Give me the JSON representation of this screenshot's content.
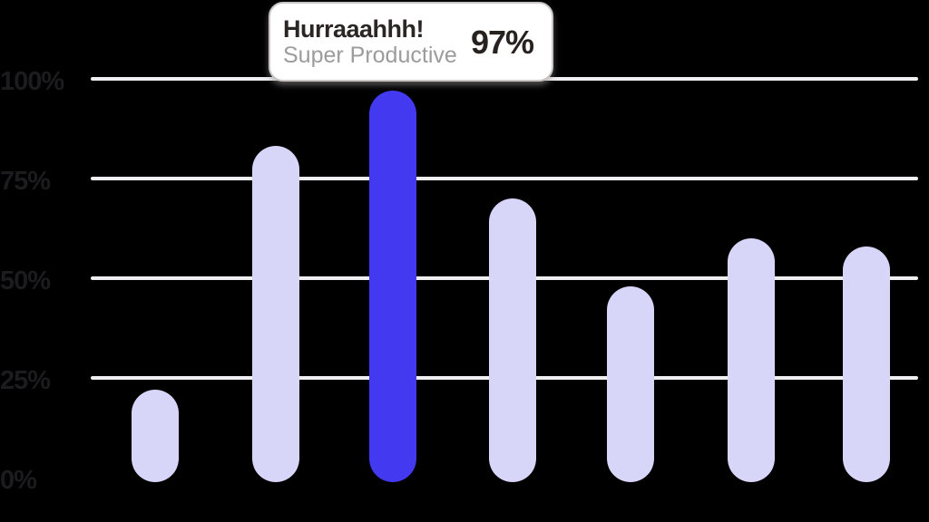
{
  "tooltip": {
    "title": "Hurraaahhh!",
    "subtitle": "Super Productive",
    "value": "97%"
  },
  "chart_data": {
    "type": "bar",
    "title": "",
    "xlabel": "",
    "ylabel": "",
    "values": [
      22,
      83,
      97,
      70,
      48,
      60,
      58
    ],
    "highlight_index": 2,
    "highlight_value_label": "97%",
    "yticks": [
      {
        "label": "100%",
        "value": 100,
        "line": true
      },
      {
        "label": "75%",
        "value": 75,
        "line": true
      },
      {
        "label": "50%",
        "value": 50,
        "line": true
      },
      {
        "label": "25%",
        "value": 25,
        "line": true
      },
      {
        "label": "0%",
        "value": 0,
        "line": false
      }
    ],
    "ylim": [
      0,
      100
    ],
    "grid": true,
    "legend": false,
    "colors": {
      "background": "#000000",
      "bar": "#d7d5f8",
      "highlight_bar": "#4339f1",
      "gridline": "#efeef0",
      "axis_label": "#1c1b1d",
      "tooltip_background": "#ffffff",
      "tooltip_border": "#cac5c5",
      "tooltip_title": "#2b2523",
      "tooltip_subtitle": "#9c9c9c",
      "tooltip_value": "#272220"
    }
  }
}
